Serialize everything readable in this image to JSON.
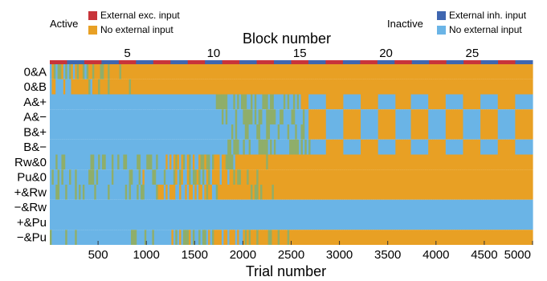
{
  "legend": {
    "active_label": "Active",
    "inactive_label": "Inactive",
    "items": [
      {
        "label": "External exc. input",
        "color": "#c8343a"
      },
      {
        "label": "No external input",
        "color": "#e8a024"
      },
      {
        "label": "External inh. input",
        "color": "#3f66b0"
      },
      {
        "label": "No external input",
        "color": "#6ab4e6"
      }
    ]
  },
  "chart_data": {
    "type": "heatmap",
    "xlabel": "Trial number",
    "x_top_label": "Block number",
    "xlim": [
      0,
      5000
    ],
    "x_ticks": [
      500,
      1000,
      1500,
      2000,
      2500,
      3000,
      3500,
      4000,
      4500,
      5000
    ],
    "block_ticks": [
      5,
      10,
      15,
      20,
      25
    ],
    "num_blocks": 28,
    "rows": [
      "0&A",
      "0&B",
      "A&+",
      "A&−",
      "B&+",
      "B&−",
      "Rw&0",
      "Pu&0",
      "+&Rw",
      "−&Rw",
      "+&Pu",
      "−&Pu"
    ],
    "colors": {
      "active_exc": "#c8343a",
      "active_none": "#e8a024",
      "inactive_inh": "#3f66b0",
      "inactive_none": "#6ab4e6",
      "mixed": "#8fae6a"
    }
  }
}
